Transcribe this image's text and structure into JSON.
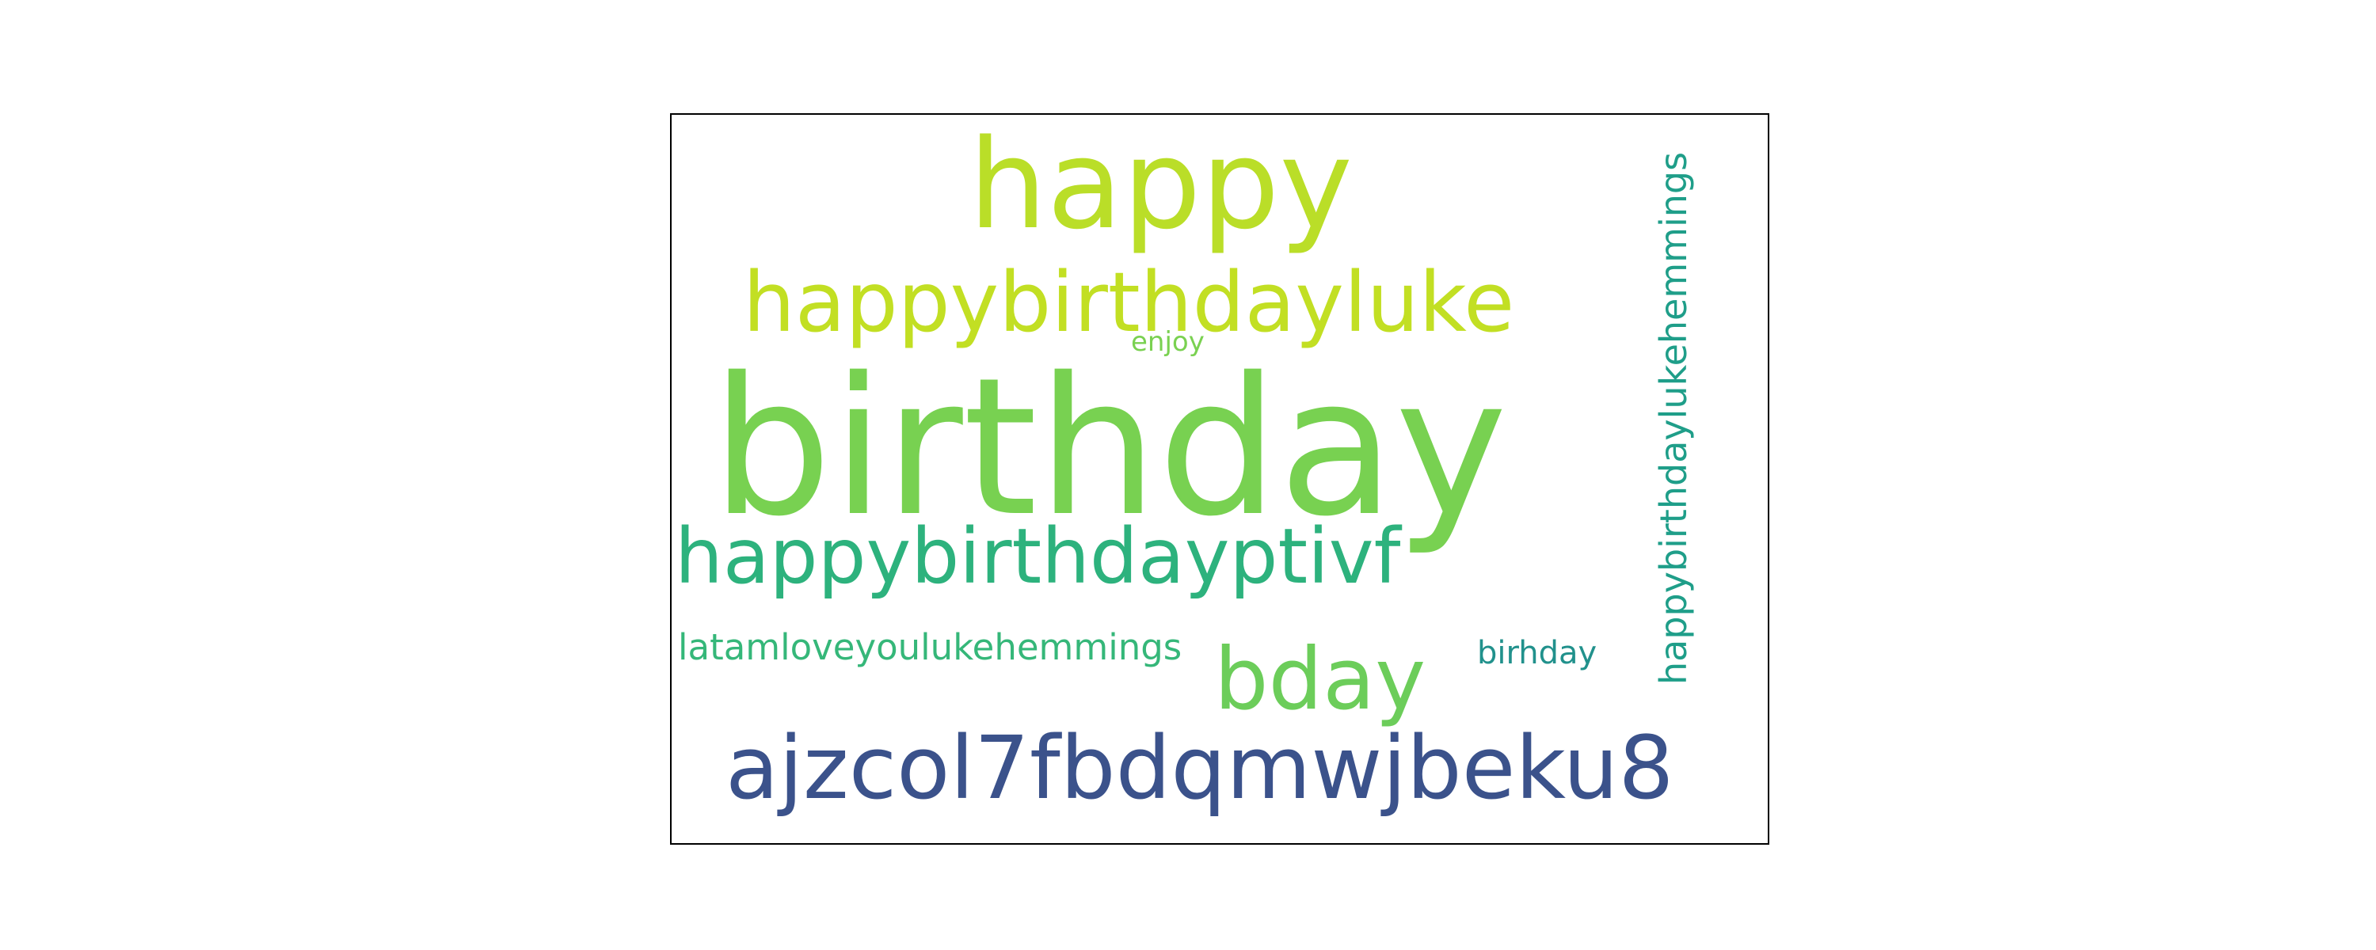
{
  "word_cloud": {
    "words": {
      "birthday": {
        "text": "birthday",
        "color": "#78d151"
      },
      "happy": {
        "text": "happy",
        "color": "#bade28"
      },
      "happybirthdayluke": {
        "text": "happybirthdayluke",
        "color": "#c2df23"
      },
      "happybirthdayptivf": {
        "text": "happybirthdayptivf",
        "color": "#2db27d"
      },
      "ajzcol": {
        "text": "ajzcol7fbdqmwjbeku8",
        "color": "#3b528b"
      },
      "bday": {
        "text": "bday",
        "color": "#6ccd5a"
      },
      "latam": {
        "text": "latamloveyoulukehemmings",
        "color": "#35b779"
      },
      "birhday": {
        "text": "birhday",
        "color": "#21918c"
      },
      "enjoy": {
        "text": "enjoy",
        "color": "#7ad151"
      },
      "vertical": {
        "text": "happybirthdaylukehemmings",
        "color": "#1f9e89"
      }
    }
  }
}
